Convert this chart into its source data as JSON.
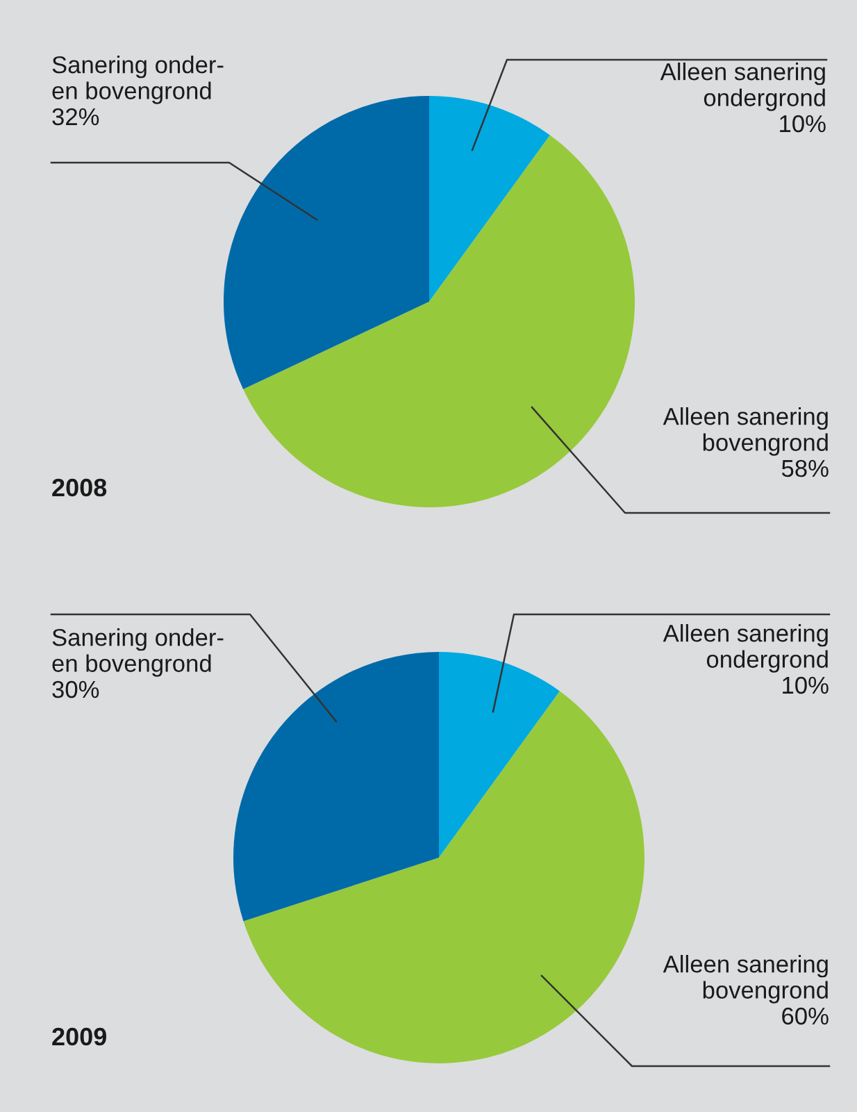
{
  "chart_data": [
    {
      "type": "pie",
      "title": "2008",
      "categories": [
        "Alleen sanering\nondergrond",
        "Alleen sanering\nbovengrond",
        "Sanering onder-\nen bovengrond"
      ],
      "values": [
        10,
        58,
        32
      ],
      "value_labels": [
        "10%",
        "58%",
        "32%"
      ],
      "colors": [
        "#00a9e0",
        "#97c93c",
        "#006aa9"
      ],
      "legend": false
    },
    {
      "type": "pie",
      "title": "2009",
      "categories": [
        "Alleen sanering\nondergrond",
        "Alleen sanering\nbovengrond",
        "Sanering onder-\nen bovengrond"
      ],
      "values": [
        10,
        60,
        30
      ],
      "value_labels": [
        "10%",
        "60%",
        "30%"
      ],
      "colors": [
        "#00a9e0",
        "#97c93c",
        "#006aa9"
      ],
      "legend": false
    }
  ]
}
